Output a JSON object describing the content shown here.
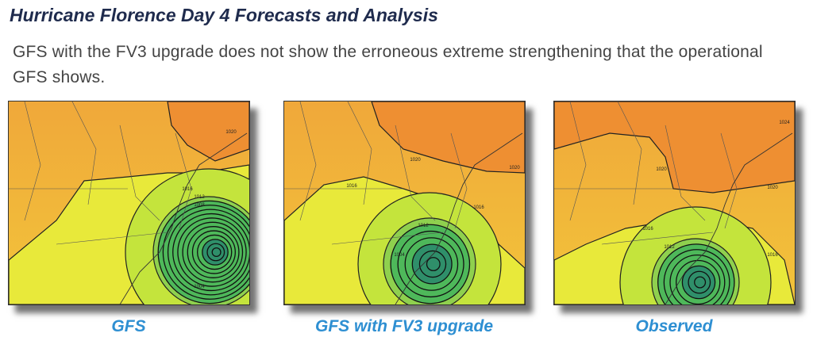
{
  "header": {
    "title": "Hurricane Florence Day 4 Forecasts and Analysis",
    "subtitle": "GFS with the FV3 upgrade does not show the erroneous extreme strengthening that the operational GFS shows."
  },
  "panels": [
    {
      "caption": "GFS",
      "contour_labels": [
        "1020",
        "1016",
        "1012",
        "1008",
        "1004"
      ]
    },
    {
      "caption": "GFS with FV3 upgrade",
      "contour_labels": [
        "1020",
        "1020",
        "1016",
        "1016",
        "1012",
        "1004"
      ]
    },
    {
      "caption": "Observed",
      "contour_labels": [
        "1024",
        "1020",
        "1020",
        "1016",
        "1016",
        "1012"
      ]
    }
  ]
}
